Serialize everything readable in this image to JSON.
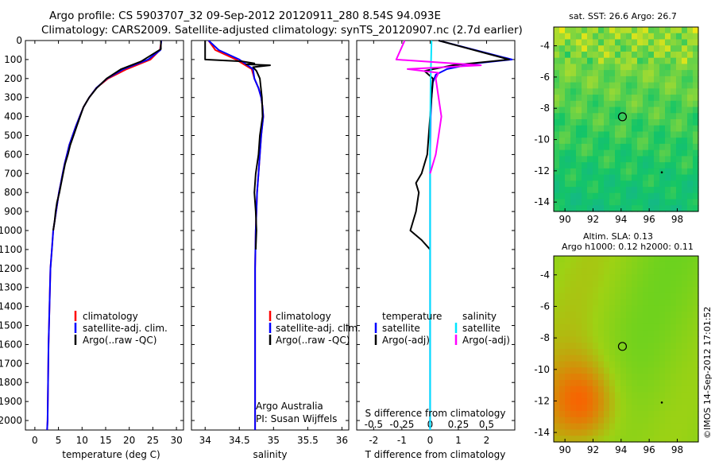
{
  "header": {
    "line1": "Argo profile: CS 5903707_32 09-Sep-2012 20120911_280 8.54S 94.093E",
    "line2": "Climatology: CARS2009. Satellite-adjusted climatology: synTS_20120907.nc (2.7d earlier)"
  },
  "colors": {
    "climatology": "#ff0000",
    "satellite": "#0000ff",
    "argo": "#000000",
    "salinity_satellite": "#00e5ff",
    "salinity_argo": "#ff00ff"
  },
  "depth_axis": {
    "ticks": [
      0,
      100,
      200,
      300,
      400,
      500,
      600,
      700,
      800,
      900,
      1000,
      1100,
      1200,
      1300,
      1400,
      1500,
      1600,
      1700,
      1800,
      1900,
      2000
    ],
    "ylim": [
      0,
      2050
    ]
  },
  "panel_temperature": {
    "xlabel": "temperature (deg C)",
    "xticks": [
      0,
      5,
      10,
      15,
      20,
      25,
      30
    ],
    "xlim": [
      -2,
      31.5
    ],
    "legend": [
      "climatology",
      "satellite-adj. clim.",
      "Argo(..raw -QC)"
    ]
  },
  "panel_salinity": {
    "xlabel": "salinity",
    "xticks": [
      "34",
      "34.5",
      "35",
      "35.5",
      "36"
    ],
    "xlim": [
      33.8,
      36.1
    ],
    "legend": [
      "climatology",
      "satellite-adj. clim.",
      "Argo(..raw -QC)"
    ],
    "credit1": "Argo Australia",
    "credit2": "PI: Susan Wijffels"
  },
  "panel_difference": {
    "xlabel": "T difference from climatology",
    "top_label": "S difference from climatology",
    "xticks_t": [
      "-2",
      "-1",
      "0",
      "1",
      "2"
    ],
    "xticks_s": [
      "-0.5",
      "-0.25",
      "0",
      "0.25",
      "0.5"
    ],
    "xlim": [
      -2.6,
      3.0
    ],
    "legend_temp_title": "temperature",
    "legend_temp": [
      "satellite",
      "Argo(-adj)"
    ],
    "legend_sal_title": "salinity",
    "legend_sal": [
      "satellite",
      "Argo(-adj)"
    ]
  },
  "map_sst": {
    "title": "sat. SST: 26.6  Argo: 26.7",
    "xticks": [
      "90",
      "92",
      "94",
      "96",
      "98"
    ],
    "yticks": [
      "-4",
      "-6",
      "-8",
      "-10",
      "-12",
      "-14"
    ],
    "xlim": [
      89.2,
      99.5
    ],
    "ylim": [
      -14.6,
      -2.8
    ]
  },
  "map_sla": {
    "title1": "Altim. SLA: 0.13",
    "title2": "Argo h1000: 0.12  h2000: 0.11",
    "xticks": [
      "90",
      "92",
      "94",
      "96",
      "98"
    ],
    "yticks": [
      "-4",
      "-6",
      "-8",
      "-10",
      "-12",
      "-14"
    ],
    "xlim": [
      89.2,
      99.5
    ],
    "ylim": [
      -14.6,
      -2.8
    ]
  },
  "side_stamp": "©IMOS 14-Sep-2012 17:01:52",
  "chart_data": [
    {
      "type": "line",
      "ylabel": "",
      "xlabel": "temperature (deg C)",
      "series": [
        {
          "name": "climatology",
          "x": [
            26.8,
            26.5,
            24.5,
            19.5,
            15.5,
            13.0,
            11.5,
            10.3,
            9.5,
            8.7,
            8.0,
            7.3,
            6.8,
            6.3,
            5.9,
            5.5,
            5.1,
            4.8,
            4.5,
            4.2,
            3.9,
            3.6,
            3.3,
            3.1,
            2.9,
            2.8,
            2.7,
            2.6
          ],
          "y": [
            0,
            50,
            100,
            150,
            200,
            250,
            300,
            350,
            400,
            450,
            500,
            550,
            600,
            650,
            700,
            750,
            800,
            850,
            900,
            950,
            1000,
            1100,
            1200,
            1400,
            1600,
            1800,
            2000,
            2050
          ]
        },
        {
          "name": "satellite-adj. clim.",
          "x": [
            26.8,
            26.6,
            24.0,
            18.8,
            15.3,
            13.0,
            11.5,
            10.3,
            9.5,
            8.7,
            8.0,
            7.3,
            6.8,
            6.3,
            5.9,
            5.5,
            5.1,
            4.8,
            4.5,
            4.2,
            3.9,
            3.6,
            3.3,
            3.1,
            2.9,
            2.8,
            2.7,
            2.6
          ],
          "y": [
            0,
            50,
            100,
            150,
            200,
            250,
            300,
            350,
            400,
            450,
            500,
            550,
            600,
            650,
            700,
            750,
            800,
            850,
            900,
            950,
            1000,
            1100,
            1200,
            1400,
            1600,
            1800,
            2000,
            2050
          ]
        },
        {
          "name": "Argo(..raw -QC)",
          "x": [
            26.7,
            26.7,
            22.5,
            18.3,
            15.2,
            13.1,
            11.5,
            10.3,
            9.6,
            8.9,
            8.2,
            7.5,
            7.0,
            6.4,
            6.0,
            5.6,
            5.2,
            4.7,
            4.4,
            4.2,
            3.9
          ],
          "y": [
            0,
            45,
            110,
            150,
            200,
            250,
            300,
            350,
            400,
            450,
            500,
            550,
            600,
            650,
            700,
            750,
            800,
            850,
            900,
            950,
            1000
          ]
        }
      ]
    },
    {
      "type": "line",
      "xlabel": "salinity",
      "series": [
        {
          "name": "climatology",
          "x": [
            34.05,
            34.15,
            34.45,
            34.68,
            34.72,
            34.78,
            34.82,
            34.84,
            34.85,
            34.82,
            34.8,
            34.78,
            34.76,
            34.75,
            34.74,
            34.73,
            34.73,
            34.73,
            34.73
          ],
          "y": [
            0,
            50,
            100,
            150,
            200,
            250,
            300,
            350,
            400,
            500,
            600,
            700,
            800,
            900,
            1000,
            1200,
            1500,
            1800,
            2050
          ]
        },
        {
          "name": "satellite-adj. clim.",
          "x": [
            34.05,
            34.2,
            34.5,
            34.7,
            34.72,
            34.78,
            34.82,
            34.84,
            34.85,
            34.82,
            34.8,
            34.78,
            34.76,
            34.75,
            34.74,
            34.73,
            34.73,
            34.73,
            34.73
          ],
          "y": [
            0,
            50,
            100,
            150,
            200,
            250,
            300,
            350,
            400,
            500,
            600,
            700,
            800,
            900,
            1000,
            1200,
            1500,
            1800,
            2050
          ]
        },
        {
          "name": "Argo(..raw -QC)",
          "x": [
            34.0,
            34.0,
            34.55,
            34.72,
            34.6,
            34.95,
            34.7,
            34.75,
            34.8,
            34.83,
            34.84,
            34.8,
            34.78,
            34.74,
            34.72,
            34.74,
            34.75,
            34.74
          ],
          "y": [
            0,
            100,
            110,
            120,
            125,
            130,
            140,
            160,
            200,
            300,
            400,
            500,
            600,
            700,
            800,
            900,
            1000,
            1100
          ]
        }
      ]
    },
    {
      "type": "line",
      "xlabel": "T difference from climatology",
      "series": [
        {
          "name": "temperature satellite",
          "x": [
            0.3,
            2.9,
            1.6,
            0.6,
            0.2,
            0.1,
            0.05,
            0.02,
            0.0,
            0.0,
            0.0,
            0.0
          ],
          "y": [
            0,
            100,
            120,
            150,
            180,
            220,
            300,
            400,
            600,
            1000,
            1500,
            2050
          ]
        },
        {
          "name": "temperature Argo(-adj)",
          "x": [
            0.3,
            2.8,
            0.8,
            -0.2,
            0.1,
            0.0,
            -0.1,
            -0.3,
            -0.5,
            -0.4,
            -0.5,
            -0.7,
            -0.3,
            0.0
          ],
          "y": [
            0,
            100,
            130,
            160,
            200,
            400,
            600,
            700,
            750,
            800,
            900,
            1000,
            1050,
            1100
          ]
        },
        {
          "name": "salinity satellite",
          "x": [
            0.05,
            0.02,
            0.0,
            0.0,
            0.0,
            0.0
          ],
          "y": [
            0,
            200,
            500,
            1000,
            1500,
            2050
          ]
        },
        {
          "name": "salinity Argo(-adj)",
          "x": [
            -0.9,
            -1.2,
            1.8,
            -0.8,
            0.3,
            0.2,
            0.4,
            0.3,
            0.2,
            0.0
          ],
          "y": [
            0,
            100,
            130,
            150,
            170,
            200,
            400,
            500,
            600,
            700
          ]
        }
      ]
    }
  ]
}
